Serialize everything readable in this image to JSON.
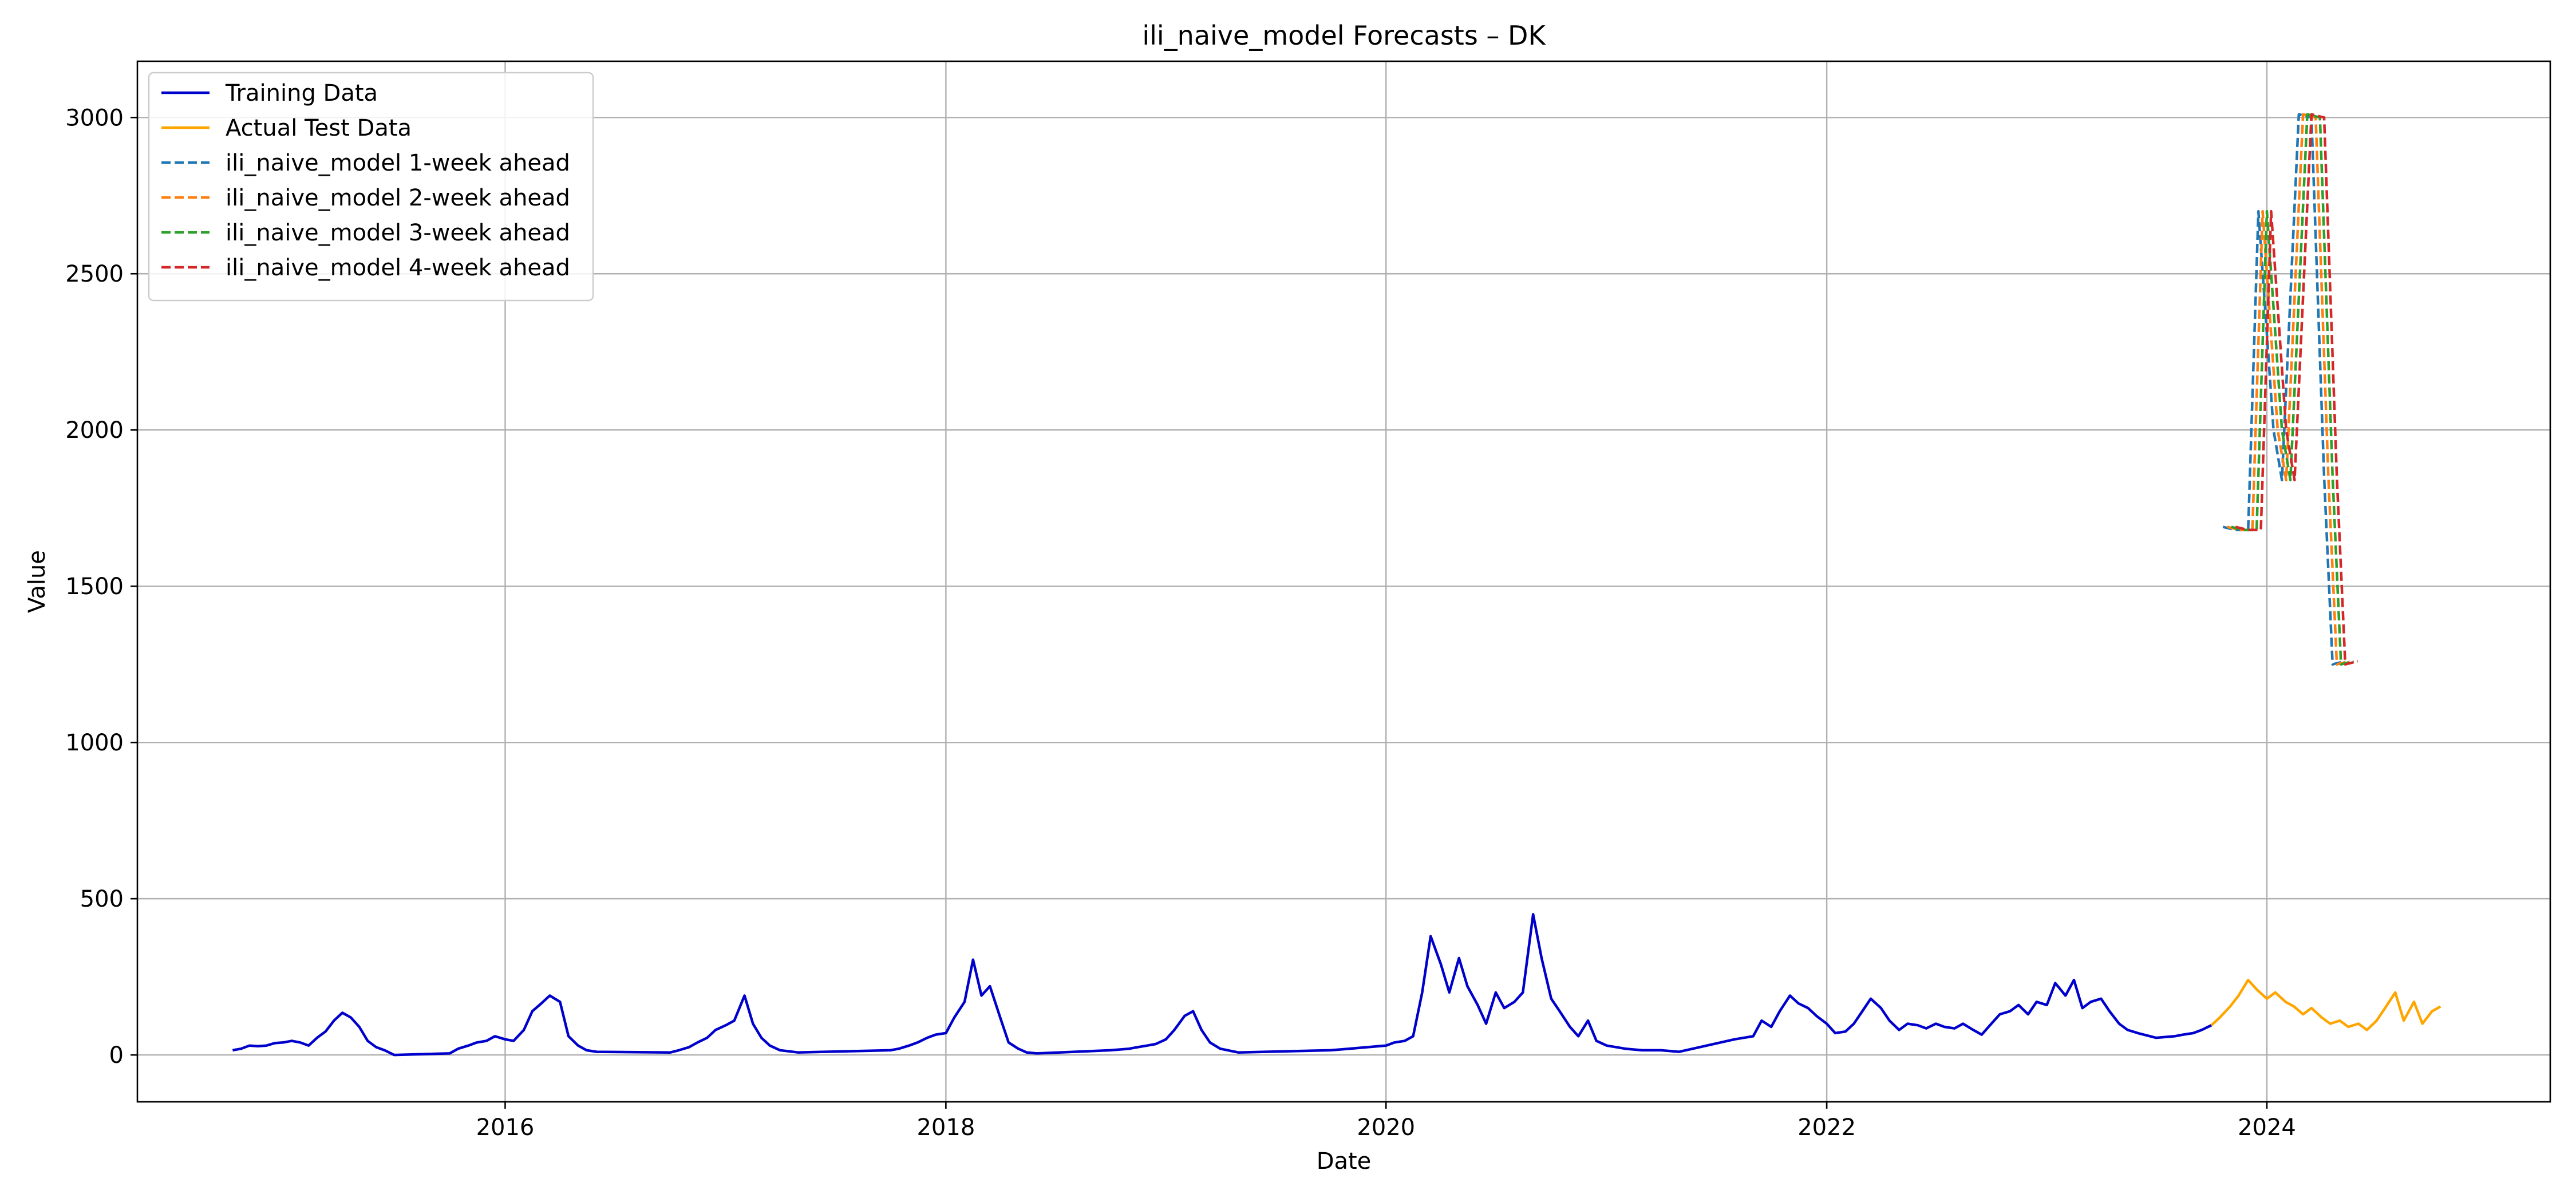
{
  "chart_data": {
    "type": "line",
    "title": "ili_naive_model Forecasts – DK",
    "xlabel": "Date",
    "ylabel": "Value",
    "x_axis_type": "date",
    "xlim": [
      "2014-05-01",
      "2025-04-15"
    ],
    "ylim": [
      -150,
      3180
    ],
    "x_ticks": [
      {
        "date": "2016-01-01",
        "label": "2016"
      },
      {
        "date": "2018-01-01",
        "label": "2018"
      },
      {
        "date": "2020-01-01",
        "label": "2020"
      },
      {
        "date": "2022-01-01",
        "label": "2022"
      },
      {
        "date": "2024-01-01",
        "label": "2024"
      }
    ],
    "y_ticks": [
      0,
      500,
      1000,
      1500,
      2000,
      2500,
      3000
    ],
    "grid": true,
    "legend_position": "upper-left",
    "series": [
      {
        "name": "Training Data",
        "color": "#0000cc",
        "style": "solid",
        "points": [
          [
            "2014-10-06",
            15
          ],
          [
            "2014-10-20",
            20
          ],
          [
            "2014-11-03",
            30
          ],
          [
            "2014-11-17",
            28
          ],
          [
            "2014-12-01",
            30
          ],
          [
            "2014-12-15",
            38
          ],
          [
            "2014-12-29",
            40
          ],
          [
            "2015-01-12",
            45
          ],
          [
            "2015-01-26",
            40
          ],
          [
            "2015-02-09",
            30
          ],
          [
            "2015-02-23",
            55
          ],
          [
            "2015-03-09",
            75
          ],
          [
            "2015-03-23",
            110
          ],
          [
            "2015-04-06",
            135
          ],
          [
            "2015-04-20",
            120
          ],
          [
            "2015-05-04",
            90
          ],
          [
            "2015-05-18",
            45
          ],
          [
            "2015-06-01",
            25
          ],
          [
            "2015-06-15",
            15
          ],
          [
            "2015-07-01",
            0
          ],
          [
            "2015-10-01",
            5
          ],
          [
            "2015-10-15",
            20
          ],
          [
            "2015-11-01",
            30
          ],
          [
            "2015-11-15",
            40
          ],
          [
            "2015-12-01",
            45
          ],
          [
            "2015-12-15",
            60
          ],
          [
            "2016-01-01",
            50
          ],
          [
            "2016-01-15",
            45
          ],
          [
            "2016-02-01",
            80
          ],
          [
            "2016-02-15",
            140
          ],
          [
            "2016-03-01",
            165
          ],
          [
            "2016-03-15",
            190
          ],
          [
            "2016-04-01",
            170
          ],
          [
            "2016-04-15",
            60
          ],
          [
            "2016-05-01",
            30
          ],
          [
            "2016-05-15",
            15
          ],
          [
            "2016-06-01",
            10
          ],
          [
            "2016-10-01",
            8
          ],
          [
            "2016-10-15",
            15
          ],
          [
            "2016-11-01",
            25
          ],
          [
            "2016-11-15",
            40
          ],
          [
            "2016-12-01",
            55
          ],
          [
            "2016-12-15",
            80
          ],
          [
            "2017-01-01",
            95
          ],
          [
            "2017-01-15",
            110
          ],
          [
            "2017-02-01",
            190
          ],
          [
            "2017-02-15",
            100
          ],
          [
            "2017-03-01",
            55
          ],
          [
            "2017-03-15",
            30
          ],
          [
            "2017-04-01",
            15
          ],
          [
            "2017-05-01",
            8
          ],
          [
            "2017-10-01",
            15
          ],
          [
            "2017-10-15",
            20
          ],
          [
            "2017-11-01",
            30
          ],
          [
            "2017-11-15",
            40
          ],
          [
            "2017-12-01",
            55
          ],
          [
            "2017-12-15",
            65
          ],
          [
            "2018-01-01",
            70
          ],
          [
            "2018-01-15",
            120
          ],
          [
            "2018-02-01",
            170
          ],
          [
            "2018-02-15",
            305
          ],
          [
            "2018-03-01",
            190
          ],
          [
            "2018-03-15",
            220
          ],
          [
            "2018-04-01",
            120
          ],
          [
            "2018-04-15",
            40
          ],
          [
            "2018-05-01",
            20
          ],
          [
            "2018-05-15",
            8
          ],
          [
            "2018-06-01",
            5
          ],
          [
            "2018-10-01",
            15
          ],
          [
            "2018-11-01",
            20
          ],
          [
            "2018-11-15",
            25
          ],
          [
            "2018-12-01",
            30
          ],
          [
            "2018-12-15",
            35
          ],
          [
            "2019-01-01",
            50
          ],
          [
            "2019-01-15",
            80
          ],
          [
            "2019-02-01",
            125
          ],
          [
            "2019-02-15",
            140
          ],
          [
            "2019-03-01",
            80
          ],
          [
            "2019-03-15",
            40
          ],
          [
            "2019-04-01",
            20
          ],
          [
            "2019-05-01",
            8
          ],
          [
            "2019-10-01",
            15
          ],
          [
            "2019-11-01",
            20
          ],
          [
            "2019-12-01",
            25
          ],
          [
            "2020-01-01",
            30
          ],
          [
            "2020-01-15",
            40
          ],
          [
            "2020-02-01",
            45
          ],
          [
            "2020-02-15",
            60
          ],
          [
            "2020-03-01",
            200
          ],
          [
            "2020-03-15",
            380
          ],
          [
            "2020-04-01",
            290
          ],
          [
            "2020-04-15",
            200
          ],
          [
            "2020-05-01",
            310
          ],
          [
            "2020-05-15",
            220
          ],
          [
            "2020-06-01",
            160
          ],
          [
            "2020-06-15",
            100
          ],
          [
            "2020-07-01",
            200
          ],
          [
            "2020-07-15",
            150
          ],
          [
            "2020-08-01",
            170
          ],
          [
            "2020-08-15",
            200
          ],
          [
            "2020-09-01",
            450
          ],
          [
            "2020-09-15",
            310
          ],
          [
            "2020-10-01",
            180
          ],
          [
            "2020-10-15",
            140
          ],
          [
            "2020-11-01",
            90
          ],
          [
            "2020-11-15",
            60
          ],
          [
            "2020-12-01",
            110
          ],
          [
            "2020-12-15",
            45
          ],
          [
            "2021-01-01",
            30
          ],
          [
            "2021-02-01",
            20
          ],
          [
            "2021-03-01",
            15
          ],
          [
            "2021-04-01",
            15
          ],
          [
            "2021-05-01",
            10
          ],
          [
            "2021-08-01",
            50
          ],
          [
            "2021-09-01",
            60
          ],
          [
            "2021-09-15",
            110
          ],
          [
            "2021-10-01",
            90
          ],
          [
            "2021-10-15",
            140
          ],
          [
            "2021-11-01",
            190
          ],
          [
            "2021-11-15",
            165
          ],
          [
            "2021-12-01",
            150
          ],
          [
            "2021-12-15",
            125
          ],
          [
            "2022-01-01",
            100
          ],
          [
            "2022-01-15",
            70
          ],
          [
            "2022-02-01",
            75
          ],
          [
            "2022-02-15",
            100
          ],
          [
            "2022-03-01",
            140
          ],
          [
            "2022-03-15",
            180
          ],
          [
            "2022-04-01",
            150
          ],
          [
            "2022-04-15",
            110
          ],
          [
            "2022-05-01",
            80
          ],
          [
            "2022-05-15",
            100
          ],
          [
            "2022-06-01",
            95
          ],
          [
            "2022-06-15",
            85
          ],
          [
            "2022-07-01",
            100
          ],
          [
            "2022-07-15",
            90
          ],
          [
            "2022-08-01",
            85
          ],
          [
            "2022-08-15",
            100
          ],
          [
            "2022-09-01",
            80
          ],
          [
            "2022-09-15",
            65
          ],
          [
            "2022-10-01",
            100
          ],
          [
            "2022-10-15",
            130
          ],
          [
            "2022-11-01",
            140
          ],
          [
            "2022-11-15",
            160
          ],
          [
            "2022-12-01",
            130
          ],
          [
            "2022-12-15",
            170
          ],
          [
            "2023-01-01",
            160
          ],
          [
            "2023-01-15",
            230
          ],
          [
            "2023-02-01",
            190
          ],
          [
            "2023-02-15",
            240
          ],
          [
            "2023-03-01",
            150
          ],
          [
            "2023-03-15",
            170
          ],
          [
            "2023-04-01",
            180
          ],
          [
            "2023-04-15",
            140
          ],
          [
            "2023-05-01",
            100
          ],
          [
            "2023-05-15",
            80
          ],
          [
            "2023-06-01",
            70
          ],
          [
            "2023-07-01",
            55
          ],
          [
            "2023-08-01",
            60
          ],
          [
            "2023-08-15",
            65
          ],
          [
            "2023-09-01",
            70
          ],
          [
            "2023-09-15",
            80
          ],
          [
            "2023-10-01",
            95
          ]
        ]
      },
      {
        "name": "Actual Test Data",
        "color": "#ffa500",
        "style": "solid",
        "points": [
          [
            "2023-10-01",
            95
          ],
          [
            "2023-10-15",
            120
          ],
          [
            "2023-11-01",
            155
          ],
          [
            "2023-11-15",
            190
          ],
          [
            "2023-12-01",
            240
          ],
          [
            "2023-12-15",
            210
          ],
          [
            "2024-01-01",
            180
          ],
          [
            "2024-01-15",
            200
          ],
          [
            "2024-02-01",
            170
          ],
          [
            "2024-02-15",
            155
          ],
          [
            "2024-03-01",
            130
          ],
          [
            "2024-03-15",
            150
          ],
          [
            "2024-04-01",
            120
          ],
          [
            "2024-04-15",
            100
          ],
          [
            "2024-05-01",
            110
          ],
          [
            "2024-05-15",
            90
          ],
          [
            "2024-06-01",
            100
          ],
          [
            "2024-06-15",
            80
          ],
          [
            "2024-07-01",
            110
          ],
          [
            "2024-07-15",
            150
          ],
          [
            "2024-08-01",
            200
          ],
          [
            "2024-08-15",
            110
          ],
          [
            "2024-09-01",
            170
          ],
          [
            "2024-09-15",
            100
          ],
          [
            "2024-10-01",
            140
          ],
          [
            "2024-10-15",
            155
          ]
        ]
      },
      {
        "name": "ili_naive_model 1-week ahead",
        "color": "#1f77b4",
        "style": "dashed",
        "points": [
          [
            "2023-10-20",
            1690
          ],
          [
            "2023-11-10",
            1680
          ],
          [
            "2023-12-01",
            1680
          ],
          [
            "2023-12-18",
            2700
          ],
          [
            "2024-01-12",
            2000
          ],
          [
            "2024-01-26",
            1840
          ],
          [
            "2024-02-23",
            3010
          ],
          [
            "2024-03-15",
            3000
          ],
          [
            "2024-04-05",
            1850
          ],
          [
            "2024-04-19",
            1250
          ],
          [
            "2024-05-10",
            1260
          ]
        ]
      },
      {
        "name": "ili_naive_model 2-week ahead",
        "color": "#ff7f0e",
        "style": "dashed",
        "points": [
          [
            "2023-10-27",
            1690
          ],
          [
            "2023-11-17",
            1680
          ],
          [
            "2023-12-08",
            1680
          ],
          [
            "2023-12-25",
            2700
          ],
          [
            "2024-01-19",
            2000
          ],
          [
            "2024-02-02",
            1840
          ],
          [
            "2024-03-01",
            3010
          ],
          [
            "2024-03-22",
            3000
          ],
          [
            "2024-04-12",
            1850
          ],
          [
            "2024-04-26",
            1250
          ],
          [
            "2024-05-17",
            1260
          ]
        ]
      },
      {
        "name": "ili_naive_model 3-week ahead",
        "color": "#2ca02c",
        "style": "dashed",
        "points": [
          [
            "2023-11-03",
            1690
          ],
          [
            "2023-11-24",
            1680
          ],
          [
            "2023-12-15",
            1680
          ],
          [
            "2024-01-01",
            2700
          ],
          [
            "2024-01-26",
            2000
          ],
          [
            "2024-02-09",
            1840
          ],
          [
            "2024-03-08",
            3010
          ],
          [
            "2024-03-29",
            3000
          ],
          [
            "2024-04-19",
            1850
          ],
          [
            "2024-05-03",
            1250
          ],
          [
            "2024-05-24",
            1260
          ]
        ]
      },
      {
        "name": "ili_naive_model 4-week ahead",
        "color": "#d62728",
        "style": "dashed",
        "points": [
          [
            "2023-11-10",
            1690
          ],
          [
            "2023-12-01",
            1680
          ],
          [
            "2023-12-22",
            1680
          ],
          [
            "2024-01-08",
            2700
          ],
          [
            "2024-02-02",
            2000
          ],
          [
            "2024-02-16",
            1840
          ],
          [
            "2024-03-15",
            3010
          ],
          [
            "2024-04-05",
            3000
          ],
          [
            "2024-04-26",
            1850
          ],
          [
            "2024-05-10",
            1250
          ],
          [
            "2024-05-31",
            1260
          ]
        ]
      }
    ]
  }
}
